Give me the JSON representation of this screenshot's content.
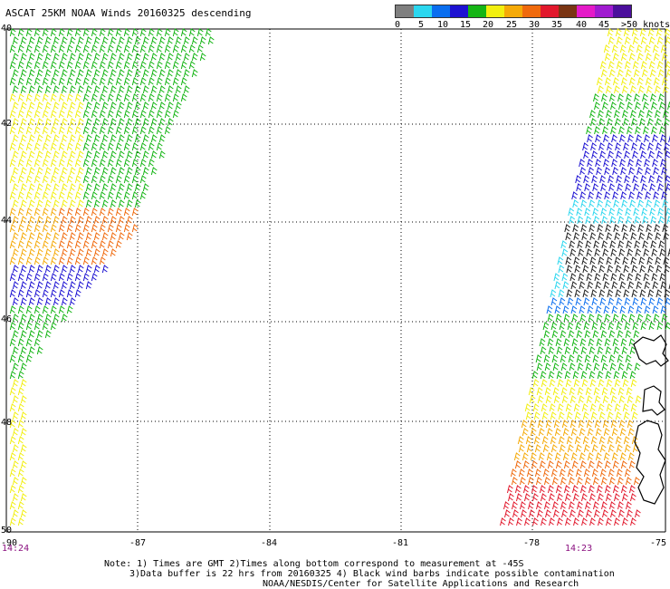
{
  "title": "ASCAT 25KM NOAA Winds 20160325 descending",
  "legend": {
    "colors": [
      "#7f7f7f",
      "#2bd7ef",
      "#0a6eef",
      "#1d12d2",
      "#15b515",
      "#f2ef10",
      "#f5aa08",
      "#f06a0d",
      "#e2182c",
      "#7a3513",
      "#e51ac8",
      "#a01bd0",
      "#4b0f9c"
    ],
    "labels": [
      "0",
      "5",
      "10",
      "15",
      "20",
      "25",
      "30",
      "35",
      "40",
      "45",
      ">50 knots"
    ]
  },
  "map": {
    "lon_labels": [
      "-90",
      "-87",
      "-84",
      "-81",
      "-78",
      "-75"
    ],
    "lat_labels": [
      "40",
      "42",
      "44",
      "46",
      "48",
      "50"
    ]
  },
  "times": {
    "left": "14:24",
    "right": "14:23"
  },
  "notes": [
    "Note: 1) Times are GMT 2)Times along bottom correspond to measurement at -45S",
    "3)Data buffer is 22 hrs from 20160325 4) Black wind barbs indicate possible contamination",
    "NOAA/NESDIS/Center for Satellite Applications and Research"
  ]
}
